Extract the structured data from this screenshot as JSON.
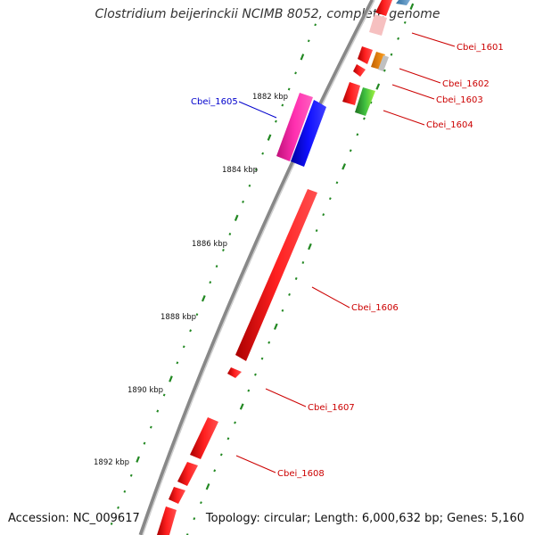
{
  "title": "Clostridium beijerinckii NCIMB 8052, complete genome",
  "footer": {
    "accession": "Accession: NC_009617",
    "summary": "Topology: circular; Length: 6,000,632 bp; Genes: 5,160"
  },
  "scale": {
    "ticks": [
      "1882 kbp",
      "1884 kbp",
      "1886 kbp",
      "1888 kbp",
      "1890 kbp",
      "1892 kbp"
    ]
  },
  "genes": [
    {
      "id": "cbei-1601",
      "label": "Cbei_1601",
      "color": "#cc0000"
    },
    {
      "id": "cbei-1602",
      "label": "Cbei_1602",
      "color": "#cc0000"
    },
    {
      "id": "cbei-1603",
      "label": "Cbei_1603",
      "color": "#cc0000"
    },
    {
      "id": "cbei-1604",
      "label": "Cbei_1604",
      "color": "#cc0000"
    },
    {
      "id": "cbei-1605",
      "label": "Cbei_1605",
      "color": "#0000cc"
    },
    {
      "id": "cbei-1606",
      "label": "Cbei_1606",
      "color": "#cc0000"
    },
    {
      "id": "cbei-1607",
      "label": "Cbei_1607",
      "color": "#cc0000"
    },
    {
      "id": "cbei-1608",
      "label": "Cbei_1608",
      "color": "#cc0000"
    }
  ],
  "colors": {
    "forward_gene": "#ee1111",
    "reverse_gene": "#1111ee",
    "pink_gene": "#ee2299",
    "backbone": "#888888",
    "tick": "#228822"
  }
}
